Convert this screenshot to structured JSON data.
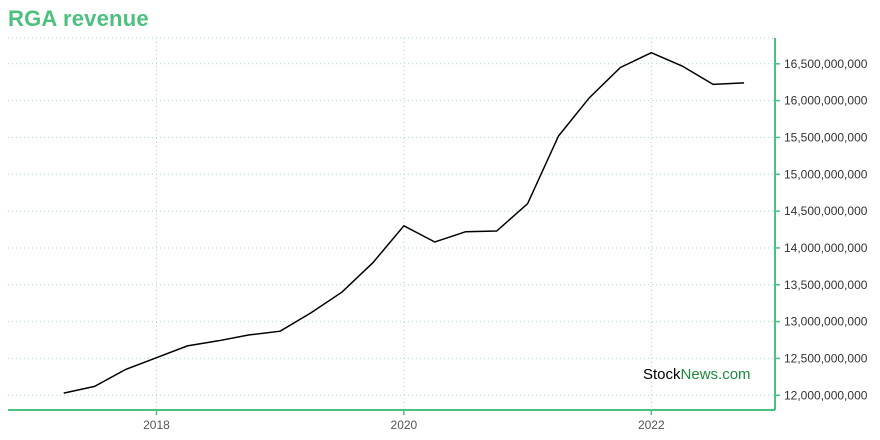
{
  "title": "RGA revenue",
  "watermark": {
    "part1": "Stock",
    "part2": "News.com"
  },
  "colors": {
    "accent": "#4cc17d",
    "line": "#000000",
    "grid": "#a9d8d8",
    "watermark_green": "#1e8a3e"
  },
  "chart_data": {
    "type": "line",
    "title": "RGA revenue",
    "xlabel": "",
    "ylabel": "",
    "x_ticks": [
      "2018",
      "2020",
      "2022"
    ],
    "y_ticks": [
      "12,000,000,000",
      "12,500,000,000",
      "13,000,000,000",
      "13,500,000,000",
      "14,000,000,000",
      "14,500,000,000",
      "15,000,000,000",
      "15,500,000,000",
      "16,000,000,000",
      "16,500,000,000"
    ],
    "ylim": [
      11800000000,
      16850000000
    ],
    "xlim": [
      2016.8,
      2023.0
    ],
    "grid": true,
    "y_axis_side": "right",
    "series": [
      {
        "x": [
          2017.25,
          2017.5,
          2017.75,
          2018.0,
          2018.25,
          2018.5,
          2018.75,
          2019.0,
          2019.25,
          2019.5,
          2019.75,
          2020.0,
          2020.25,
          2020.5,
          2020.75,
          2021.0,
          2021.25,
          2021.5,
          2021.75,
          2022.0,
          2022.25,
          2022.5,
          2022.75
        ],
        "values": [
          12030000000,
          12120000000,
          12350000000,
          12510000000,
          12670000000,
          12740000000,
          12820000000,
          12870000000,
          13120000000,
          13400000000,
          13800000000,
          14300000000,
          14080000000,
          14220000000,
          14230000000,
          14600000000,
          15520000000,
          16040000000,
          16450000000,
          16650000000,
          16470000000,
          16220000000,
          16240000000
        ]
      }
    ],
    "watermark_position": "bottom-right"
  }
}
